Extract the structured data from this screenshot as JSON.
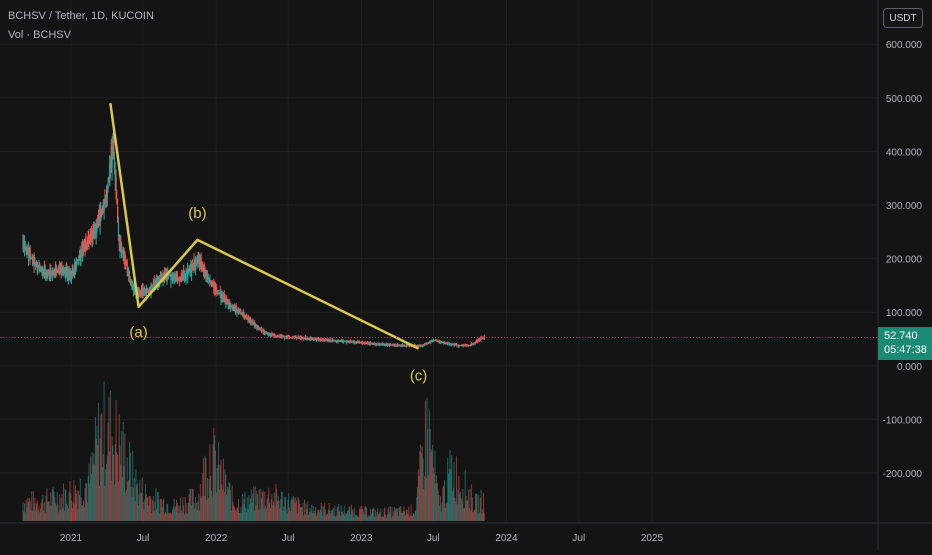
{
  "header": {
    "symbol_line": "BCHSV / Tether, 1D, KUCOIN",
    "volume_line": "Vol · BCHSV"
  },
  "unit_button": "USDT",
  "price_badge": {
    "price": "52.740",
    "countdown": "05:47:38"
  },
  "colors": {
    "background": "#141414",
    "grid": "#1f1f1f",
    "up": "#26a69a",
    "down": "#ef5350",
    "annotation": "#d9c94a",
    "axis_text": "#b2b5be",
    "badge": "#1b8a74"
  },
  "chart_data": {
    "type": "line",
    "title": "",
    "xlabel": "",
    "ylabel": "",
    "ylim": [
      -250,
      650
    ],
    "xlim": [
      "2020-09-01",
      "2025-09-30"
    ],
    "grid": true,
    "y_ticks": [
      {
        "value": 600,
        "label": "600.000"
      },
      {
        "value": 500,
        "label": "500.000"
      },
      {
        "value": 400,
        "label": "400.000"
      },
      {
        "value": 300,
        "label": "300.000"
      },
      {
        "value": 200,
        "label": "200.000"
      },
      {
        "value": 100,
        "label": "100.000"
      },
      {
        "value": 0,
        "label": "0.000"
      },
      {
        "value": -100,
        "label": "-100.000"
      },
      {
        "value": -200,
        "label": "-200.000"
      }
    ],
    "x_ticks": [
      {
        "date": "2021-01-01",
        "label": "2021"
      },
      {
        "date": "2021-07-01",
        "label": "Jul"
      },
      {
        "date": "2022-01-01",
        "label": "2022"
      },
      {
        "date": "2022-07-01",
        "label": "Jul"
      },
      {
        "date": "2023-01-01",
        "label": "2023"
      },
      {
        "date": "2023-07-01",
        "label": "Jul"
      },
      {
        "date": "2024-01-01",
        "label": "2024"
      },
      {
        "date": "2024-07-01",
        "label": "Jul"
      },
      {
        "date": "2025-01-01",
        "label": "2025"
      }
    ],
    "price_series": {
      "x": [
        "2020-09-01",
        "2020-10-01",
        "2020-11-01",
        "2020-12-01",
        "2021-01-01",
        "2021-02-01",
        "2021-03-01",
        "2021-04-01",
        "2021-04-16",
        "2021-05-01",
        "2021-05-15",
        "2021-06-01",
        "2021-06-20",
        "2021-07-15",
        "2021-08-15",
        "2021-09-01",
        "2021-10-01",
        "2021-11-01",
        "2021-11-15",
        "2021-12-01",
        "2022-01-01",
        "2022-02-01",
        "2022-03-01",
        "2022-04-01",
        "2022-05-01",
        "2022-06-01",
        "2022-08-01",
        "2022-10-01",
        "2022-12-01",
        "2023-02-01",
        "2023-04-01",
        "2023-06-01",
        "2023-07-01",
        "2023-08-01",
        "2023-09-01",
        "2023-10-01",
        "2023-11-01"
      ],
      "close": [
        230,
        190,
        170,
        180,
        170,
        220,
        250,
        320,
        420,
        230,
        200,
        150,
        135,
        140,
        165,
        170,
        160,
        185,
        200,
        175,
        140,
        115,
        100,
        80,
        62,
        55,
        52,
        48,
        45,
        41,
        38,
        37,
        48,
        42,
        38,
        38,
        52
      ]
    },
    "volume_series": {
      "x": [
        "2020-10",
        "2020-12",
        "2021-02",
        "2021-03",
        "2021-04",
        "2021-05",
        "2021-06",
        "2021-07",
        "2021-09",
        "2021-11",
        "2021-12",
        "2022-02",
        "2022-05",
        "2022-08",
        "2022-11",
        "2023-02",
        "2023-05",
        "2023-06",
        "2023-07",
        "2023-08",
        "2023-10",
        "2023-11"
      ],
      "values": [
        45,
        60,
        90,
        210,
        205,
        150,
        80,
        55,
        35,
        55,
        160,
        40,
        60,
        30,
        25,
        20,
        25,
        225,
        35,
        120,
        40,
        55
      ],
      "unit": "axis-scale"
    },
    "annotations": [
      {
        "label": "(a)",
        "date": "2021-06-20",
        "price": 110
      },
      {
        "label": "(b)",
        "date": "2021-11-15",
        "price": 235
      },
      {
        "label": "(c)",
        "date": "2023-05-25",
        "price": 32
      }
    ],
    "wave_line": [
      {
        "date": "2021-04-10",
        "price": 490
      },
      {
        "date": "2021-06-20",
        "price": 110
      },
      {
        "date": "2021-11-15",
        "price": 235
      },
      {
        "date": "2023-05-25",
        "price": 32
      }
    ],
    "last_price": 52.74
  }
}
